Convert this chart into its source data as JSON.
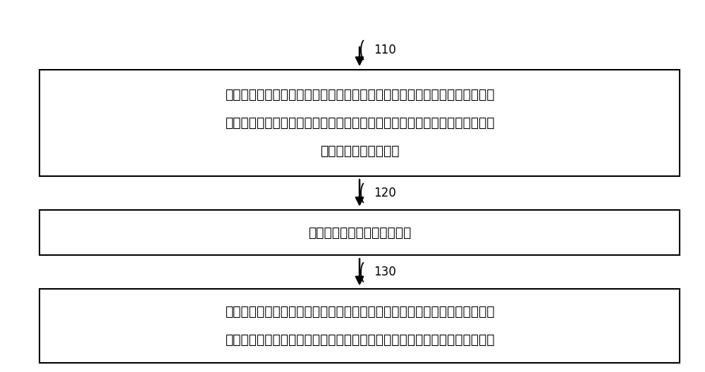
{
  "background_color": "#ffffff",
  "fig_width": 10.0,
  "fig_height": 5.28,
  "dpi": 100,
  "box1_text_lines": [
    "接收安装于所述舰船的噪声测量仪采集的噪声信号，所述噪声信号包含由航行",
    "于目标海域的所述舰船自身发出的噪声和安装于所述舰船的噪声干扰器在所述",
    "目标海域内发射的噪声"
  ],
  "box2_text": "获取所述噪声信号的频谱数据",
  "box3_text_lines": [
    "在频谱数据与目标海域环境噪声的标准频谱不匹配的情况下，根据所述标准频",
    "谱调整所述噪声干扰器的发射参数，直到所述频谱数据与所述标准频谱相匹配"
  ],
  "label1": "110",
  "label2": "120",
  "label3": "130",
  "line_color": "#000000",
  "box_edge_color": "#000000",
  "box_face_color": "#ffffff",
  "text_color": "#000000",
  "arrow_color": "#000000",
  "text_fontsize": 13.5,
  "label_fontsize": 12
}
